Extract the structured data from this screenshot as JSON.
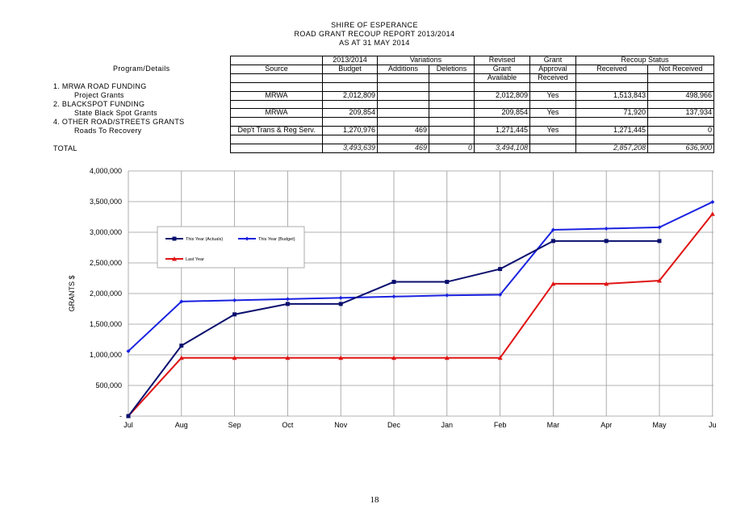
{
  "header": {
    "line1": "SHIRE OF ESPERANCE",
    "line2": "ROAD GRANT RECOUP REPORT 2013/2014",
    "line3": "AS AT 31 MAY 2014"
  },
  "program_header": "Program/Details",
  "table": {
    "header_row1": {
      "budget": "2013/2014",
      "variations": "Variations",
      "revised": "Revised",
      "grant": "Grant",
      "recoup": "Recoup Status"
    },
    "header_row2": {
      "source": "Source",
      "budget": "Budget",
      "additions": "Additions",
      "deletions": "Deletions",
      "revised": "Grant",
      "approval": "Approval",
      "received": "Received",
      "not_received": "Not Received"
    },
    "header_row3": {
      "revised": "Available",
      "approval": "Received"
    },
    "sections": [
      {
        "title": "1. MRWA ROAD FUNDING",
        "item": "Project Grants",
        "source": "MRWA",
        "budget": "2,012,809",
        "additions": "",
        "deletions": "",
        "revised": "2,012,809",
        "approval": "Yes",
        "received": "1,513,843",
        "not_received": "498,966"
      },
      {
        "title": "2. BLACKSPOT FUNDING",
        "item": "State Black Spot Grants",
        "source": "MRWA",
        "budget": "209,854",
        "additions": "",
        "deletions": "",
        "revised": "209,854",
        "approval": "Yes",
        "received": "71,920",
        "not_received": "137,934"
      },
      {
        "title": "4. OTHER ROAD/STREETS GRANTS",
        "item": "Roads To Recovery",
        "source": "Dep't Trans & Reg Serv.",
        "budget": "1,270,976",
        "additions": "469",
        "deletions": "",
        "revised": "1,271,445",
        "approval": "Yes",
        "received": "1,271,445",
        "not_received": "0"
      }
    ],
    "total": {
      "label": "TOTAL",
      "budget": "3,493,639",
      "additions": "469",
      "deletions": "0",
      "revised": "3,494,108",
      "received": "2,857,208",
      "not_received": "636,900"
    }
  },
  "chart_data": {
    "type": "line",
    "ylabel": "GRANTS $",
    "xlabel": "",
    "categories": [
      "Jul",
      "Aug",
      "Sep",
      "Oct",
      "Nov",
      "Dec",
      "Jan",
      "Feb",
      "Mar",
      "Apr",
      "May",
      "Jun"
    ],
    "x_tick_labels": [
      "Jul",
      "Aug",
      "Sep",
      "Oct",
      "Nov",
      "Dec",
      "Jan",
      "Feb",
      "Mar",
      "Apr",
      "May",
      "Ju"
    ],
    "ylim": [
      0,
      4000000
    ],
    "y_tick_labels": [
      "-",
      "500,000",
      "1,000,000",
      "1,500,000",
      "2,000,000",
      "2,500,000",
      "3,000,000",
      "3,500,000",
      "4,000,000"
    ],
    "grid": true,
    "legend_position": "top-left",
    "series": [
      {
        "name": "This Year (Actuals)",
        "color": "#0a0f6e",
        "marker": "square",
        "values": [
          0,
          1150000,
          1660000,
          1830000,
          1830000,
          2190000,
          2190000,
          2400000,
          2857208,
          2857208,
          2857208,
          null
        ]
      },
      {
        "name": "This Year (Budget)",
        "color": "#1a22e0",
        "marker": "diamond",
        "values": [
          1060000,
          1870000,
          1890000,
          1910000,
          1930000,
          1950000,
          1970000,
          1980000,
          3040000,
          3060000,
          3080000,
          3494108
        ]
      },
      {
        "name": "Last Year",
        "color": "#e01414",
        "marker": "triangle",
        "values": [
          0,
          950000,
          950000,
          950000,
          950000,
          950000,
          950000,
          950000,
          2160000,
          2160000,
          2210000,
          3300000
        ]
      }
    ]
  },
  "page_number": "18"
}
